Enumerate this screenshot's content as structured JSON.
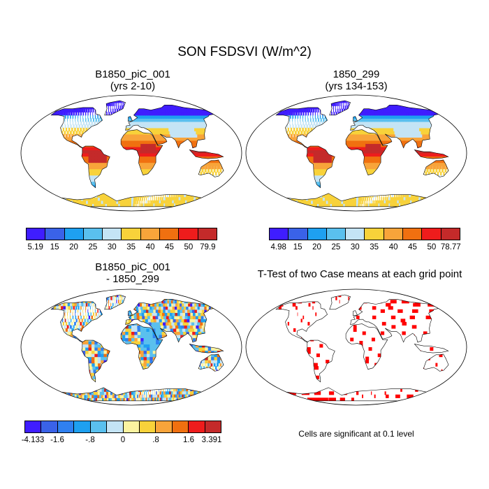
{
  "title": "SON FSDSVI (W/m^2)",
  "panels": [
    {
      "title_line1": "B1850_piC_001",
      "title_line2": "(yrs 2-10)"
    },
    {
      "title_line1": "1850_299",
      "title_line2": "(yrs 134-153)"
    },
    {
      "title_line1": "B1850_piC_001",
      "title_line2": "- 1850_299"
    },
    {
      "title_line1": "T-Test of two Case means at each grid point",
      "title_line2": ""
    }
  ],
  "colorbars": [
    {
      "labels": [
        "5.19",
        "15",
        "20",
        "25",
        "30",
        "35",
        "40",
        "45",
        "50",
        "79.9"
      ],
      "colors": [
        "#3f1dff",
        "#3a62e8",
        "#1ea0f0",
        "#5ac0ee",
        "#c4e4f5",
        "#f8d23a",
        "#f8a43a",
        "#f07010",
        "#ee1c1c",
        "#c42a2a"
      ]
    },
    {
      "labels": [
        "4.98",
        "15",
        "20",
        "25",
        "30",
        "35",
        "40",
        "45",
        "50",
        "78.77"
      ],
      "colors": [
        "#3f1dff",
        "#3a62e8",
        "#1ea0f0",
        "#5ac0ee",
        "#c4e4f5",
        "#f8d23a",
        "#f8a43a",
        "#f07010",
        "#ee1c1c",
        "#c42a2a"
      ]
    },
    {
      "labels": [
        "-4.133",
        "-1.6",
        "-.8",
        "0",
        ".8",
        "1.6",
        "3.391"
      ],
      "colors": [
        "#3f1dff",
        "#3a62e8",
        "#2f80f0",
        "#1ea0f0",
        "#5ac0ee",
        "#c4e4f5",
        "#fbf3a0",
        "#f8d23a",
        "#f8a43a",
        "#f07010",
        "#ee1c1c",
        "#c42a2a"
      ]
    }
  ],
  "significance_note": "Cells are significant at 0.1 level"
}
